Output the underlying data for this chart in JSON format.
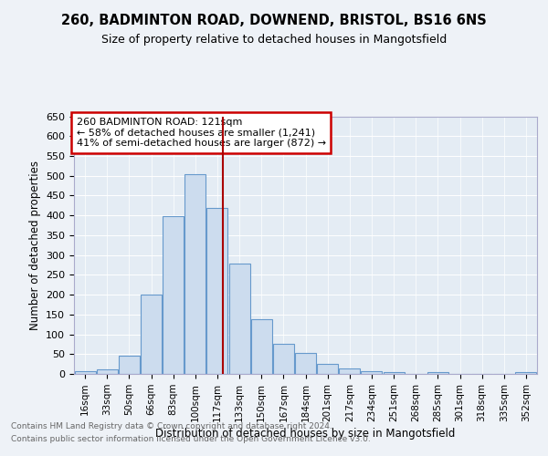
{
  "title1": "260, BADMINTON ROAD, DOWNEND, BRISTOL, BS16 6NS",
  "title2": "Size of property relative to detached houses in Mangotsfield",
  "xlabel": "Distribution of detached houses by size in Mangotsfield",
  "ylabel": "Number of detached properties",
  "bins": [
    "16sqm",
    "33sqm",
    "50sqm",
    "66sqm",
    "83sqm",
    "100sqm",
    "117sqm",
    "133sqm",
    "150sqm",
    "167sqm",
    "184sqm",
    "201sqm",
    "217sqm",
    "234sqm",
    "251sqm",
    "268sqm",
    "285sqm",
    "301sqm",
    "318sqm",
    "335sqm",
    "352sqm"
  ],
  "bar_values": [
    7,
    12,
    45,
    200,
    397,
    505,
    418,
    278,
    138,
    75,
    52,
    25,
    13,
    8,
    5,
    0,
    5,
    0,
    0,
    0,
    5
  ],
  "bar_color": "#ccdcee",
  "bar_edge_color": "#6699cc",
  "vline_color": "#aa0000",
  "vline_pos": 6.25,
  "annotation_text": "260 BADMINTON ROAD: 121sqm\n← 58% of detached houses are smaller (1,241)\n41% of semi-detached houses are larger (872) →",
  "annotation_box_color": "#ffffff",
  "annotation_box_edge": "#cc0000",
  "ylim": [
    0,
    650
  ],
  "yticks": [
    0,
    50,
    100,
    150,
    200,
    250,
    300,
    350,
    400,
    450,
    500,
    550,
    600,
    650
  ],
  "footer1": "Contains HM Land Registry data © Crown copyright and database right 2024.",
  "footer2": "Contains public sector information licensed under the Open Government Licence v3.0.",
  "bg_color": "#eef2f7",
  "plot_bg_color": "#e4ecf4"
}
